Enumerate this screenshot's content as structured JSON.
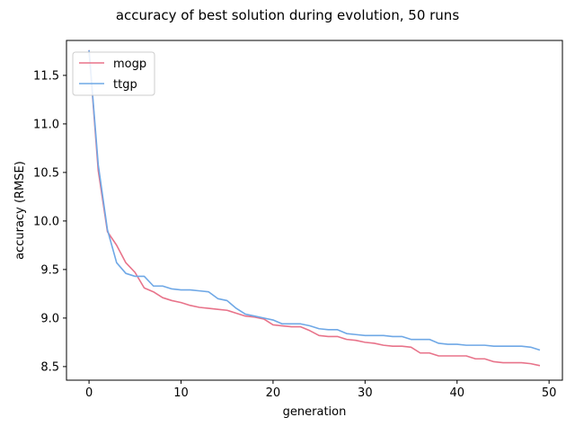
{
  "chart_data": {
    "type": "line",
    "title": "accuracy of best solution during evolution, 50 runs",
    "xlabel": "generation",
    "ylabel": "accuracy (RMSE)",
    "xlim": [
      -2.45,
      51.45
    ],
    "ylim": [
      8.36,
      11.86
    ],
    "xticks": [
      0,
      10,
      20,
      30,
      40,
      50
    ],
    "yticks": [
      8.5,
      9.0,
      9.5,
      10.0,
      10.5,
      11.0,
      11.5
    ],
    "grid": false,
    "legend_position": "top-left",
    "x": [
      0,
      1,
      2,
      3,
      4,
      5,
      6,
      7,
      8,
      9,
      10,
      11,
      12,
      13,
      14,
      15,
      16,
      17,
      18,
      19,
      20,
      21,
      22,
      23,
      24,
      25,
      26,
      27,
      28,
      29,
      30,
      31,
      32,
      33,
      34,
      35,
      36,
      37,
      38,
      39,
      40,
      41,
      42,
      43,
      44,
      45,
      46,
      47,
      48,
      49
    ],
    "series": [
      {
        "name": "mogp",
        "color": "#e8738a",
        "values": [
          11.76,
          10.52,
          9.89,
          9.75,
          9.57,
          9.47,
          9.31,
          9.27,
          9.21,
          9.18,
          9.16,
          9.13,
          9.11,
          9.1,
          9.09,
          9.08,
          9.05,
          9.02,
          9.01,
          8.99,
          8.93,
          8.92,
          8.91,
          8.91,
          8.87,
          8.82,
          8.81,
          8.81,
          8.78,
          8.77,
          8.75,
          8.74,
          8.72,
          8.71,
          8.71,
          8.7,
          8.64,
          8.64,
          8.61,
          8.61,
          8.61,
          8.61,
          8.58,
          8.58,
          8.55,
          8.54,
          8.54,
          8.54,
          8.53,
          8.51
        ]
      },
      {
        "name": "ttgp",
        "color": "#6fa8e6",
        "values": [
          11.76,
          10.58,
          9.91,
          9.57,
          9.46,
          9.43,
          9.43,
          9.33,
          9.33,
          9.3,
          9.29,
          9.29,
          9.28,
          9.27,
          9.2,
          9.18,
          9.1,
          9.04,
          9.02,
          9.0,
          8.98,
          8.94,
          8.94,
          8.94,
          8.92,
          8.89,
          8.88,
          8.88,
          8.84,
          8.83,
          8.82,
          8.82,
          8.82,
          8.81,
          8.81,
          8.78,
          8.78,
          8.78,
          8.74,
          8.73,
          8.73,
          8.72,
          8.72,
          8.72,
          8.71,
          8.71,
          8.71,
          8.71,
          8.7,
          8.67
        ]
      }
    ]
  }
}
